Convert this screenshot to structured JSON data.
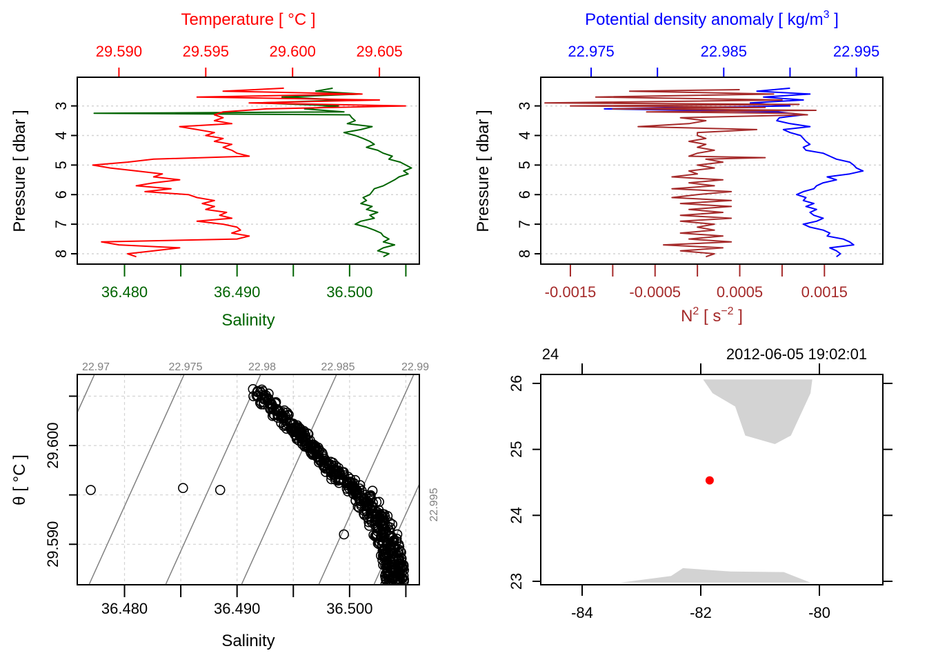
{
  "colors": {
    "temperature": "#ff0000",
    "salinity": "#006400",
    "density": "#0000ff",
    "n2": "#a52a2a",
    "frame": "#000000",
    "grid": "#d3d3d3",
    "isopycnal": "#808080",
    "land": "#d3d3d3",
    "station": "#ff0000"
  },
  "chart_data": [
    {
      "id": "temperature-salinity-profile",
      "type": "line",
      "title_top": "Temperature [ °C ]",
      "xlabel_bottom": "Salinity",
      "ylabel": "Pressure [ dbar ]",
      "top_axis": {
        "label": "Temperature [ °C ]",
        "ticks": [
          "29.590",
          "29.595",
          "29.600",
          "29.605"
        ],
        "tick_values": [
          29.59,
          29.595,
          29.6,
          29.605
        ],
        "range": [
          29.5876,
          29.6073
        ]
      },
      "bottom_axis": {
        "label": "Salinity",
        "ticks": [
          "36.480",
          "36.490",
          "36.500"
        ],
        "tick_values": [
          36.48,
          36.485,
          36.49,
          36.495,
          36.5,
          36.505
        ],
        "range": [
          36.4758,
          36.5062
        ]
      },
      "y_axis": {
        "ticks": [
          "3",
          "4",
          "5",
          "6",
          "7",
          "8"
        ],
        "tick_values": [
          3,
          4,
          5,
          6,
          7,
          8
        ],
        "range": [
          8.35,
          2.03
        ],
        "reversed": true
      },
      "grid": "horizontal-dotted",
      "series": [
        {
          "name": "Temperature",
          "axis": "top",
          "pressure": [
            2.4,
            2.5,
            2.6,
            2.7,
            2.8,
            2.9,
            3.0,
            3.1,
            3.2,
            3.3,
            3.4,
            3.5,
            3.6,
            3.7,
            3.8,
            3.9,
            4.0,
            4.1,
            4.2,
            4.3,
            4.4,
            4.5,
            4.6,
            4.7,
            4.8,
            4.9,
            5.0,
            5.1,
            5.2,
            5.3,
            5.4,
            5.5,
            5.6,
            5.7,
            5.8,
            5.9,
            6.0,
            6.1,
            6.2,
            6.3,
            6.4,
            6.5,
            6.6,
            6.7,
            6.8,
            6.9,
            7.0,
            7.1,
            7.2,
            7.3,
            7.4,
            7.5,
            7.6,
            7.7,
            7.8,
            7.9,
            8.0,
            8.1
          ],
          "values": [
            29.5995,
            29.596,
            29.604,
            29.5945,
            29.605,
            29.5975,
            29.6065,
            29.5985,
            29.596,
            29.5955,
            29.596,
            29.5955,
            29.5965,
            29.5935,
            29.5945,
            29.5955,
            29.595,
            29.596,
            29.5955,
            29.5965,
            29.596,
            29.5965,
            29.5968,
            29.5975,
            29.592,
            29.5905,
            29.5885,
            29.5895,
            29.591,
            29.5925,
            29.592,
            29.5935,
            29.592,
            29.591,
            29.593,
            29.5915,
            29.594,
            29.5945,
            29.5955,
            29.5948,
            29.5955,
            29.595,
            29.5962,
            29.5958,
            29.5965,
            29.5945,
            29.596,
            29.5968,
            29.597,
            29.5965,
            29.5975,
            29.5968,
            29.589,
            29.59,
            29.5935,
            29.592,
            29.5905,
            29.591
          ]
        },
        {
          "name": "Salinity",
          "axis": "bottom",
          "pressure": [
            2.4,
            2.5,
            2.6,
            2.7,
            2.8,
            2.9,
            3.0,
            3.1,
            3.2,
            3.25,
            3.3,
            3.4,
            3.5,
            3.6,
            3.7,
            3.8,
            3.9,
            4.0,
            4.1,
            4.2,
            4.3,
            4.4,
            4.5,
            4.6,
            4.7,
            4.8,
            4.9,
            5.0,
            5.1,
            5.2,
            5.3,
            5.4,
            5.5,
            5.6,
            5.7,
            5.8,
            5.9,
            6.0,
            6.1,
            6.2,
            6.3,
            6.4,
            6.5,
            6.6,
            6.7,
            6.8,
            6.9,
            7.0,
            7.1,
            7.2,
            7.3,
            7.4,
            7.5,
            7.6,
            7.7,
            7.8,
            7.9,
            8.0,
            8.1
          ],
          "values": [
            36.4985,
            36.497,
            36.501,
            36.494,
            36.4995,
            36.492,
            36.499,
            36.496,
            36.4995,
            36.4773,
            36.5,
            36.5002,
            36.5005,
            36.4998,
            36.502,
            36.501,
            36.4995,
            36.5005,
            36.5012,
            36.5018,
            36.5022,
            36.5015,
            36.5025,
            36.503,
            36.5038,
            36.5035,
            36.5045,
            36.505,
            36.5055,
            36.5048,
            36.5052,
            36.5044,
            36.504,
            36.5035,
            36.503,
            36.5022,
            36.502,
            36.5018,
            36.5012,
            36.5015,
            36.501,
            36.502,
            36.5015,
            36.5025,
            36.5018,
            36.5022,
            36.501,
            36.5005,
            36.5015,
            36.5022,
            36.5028,
            36.503,
            36.5035,
            36.503,
            36.504,
            36.503,
            36.5025,
            36.5035,
            36.503
          ]
        }
      ]
    },
    {
      "id": "density-n2-profile",
      "type": "line",
      "title_top": "Potential density anomaly [ kg/m³ ]",
      "xlabel_bottom": "N² [ s⁻² ]",
      "ylabel": "Pressure [ dbar ]",
      "top_axis": {
        "label": "Potential density anomaly [ kg/m^3 ]",
        "ticks": [
          "22.975",
          "22.985",
          "22.995"
        ],
        "tick_values": [
          22.975,
          22.98,
          22.985,
          22.99,
          22.995
        ],
        "range": [
          22.9712,
          22.997
        ]
      },
      "bottom_axis": {
        "label": "N^2 [ s^-2 ]",
        "ticks": [
          "-0.0015",
          "-0.0005",
          "0.0005",
          "0.0015"
        ],
        "tick_values": [
          -0.0015,
          -0.001,
          -0.0005,
          0,
          0.0005,
          0.001,
          0.0015
        ],
        "range": [
          -0.00185,
          0.00219
        ]
      },
      "y_axis": {
        "ticks": [
          "3",
          "4",
          "5",
          "6",
          "7",
          "8"
        ],
        "tick_values": [
          3,
          4,
          5,
          6,
          7,
          8
        ],
        "range": [
          8.35,
          2.03
        ],
        "reversed": true
      },
      "grid": "horizontal-dotted",
      "series": [
        {
          "name": "Potential density anomaly",
          "axis": "top",
          "pressure": [
            2.4,
            2.5,
            2.6,
            2.7,
            2.8,
            2.9,
            3.0,
            3.1,
            3.2,
            3.3,
            3.4,
            3.5,
            3.6,
            3.7,
            3.8,
            3.9,
            4.0,
            4.1,
            4.2,
            4.3,
            4.4,
            4.5,
            4.6,
            4.7,
            4.8,
            4.9,
            5.0,
            5.1,
            5.2,
            5.3,
            5.4,
            5.5,
            5.6,
            5.7,
            5.8,
            5.9,
            6.0,
            6.1,
            6.2,
            6.3,
            6.4,
            6.5,
            6.6,
            6.7,
            6.8,
            6.9,
            7.0,
            7.1,
            7.2,
            7.3,
            7.4,
            7.5,
            7.6,
            7.7,
            7.8,
            7.9,
            8.0,
            8.1
          ],
          "values": [
            22.99,
            22.9875,
            22.9915,
            22.988,
            22.991,
            22.987,
            22.99,
            22.976,
            22.989,
            22.991,
            22.9892,
            22.989,
            22.99,
            22.9915,
            22.9895,
            22.99,
            22.9908,
            22.991,
            22.9912,
            22.9915,
            22.991,
            22.9912,
            22.9925,
            22.993,
            22.9935,
            22.9945,
            22.9948,
            22.995,
            22.9955,
            22.9945,
            22.9928,
            22.9935,
            22.9925,
            22.992,
            22.9918,
            22.991,
            22.9905,
            22.9912,
            22.991,
            22.9918,
            22.9912,
            22.992,
            22.9915,
            22.9918,
            22.9925,
            22.992,
            22.991,
            22.9915,
            22.9925,
            22.993,
            22.9928,
            22.994,
            22.9945,
            22.9948,
            22.993,
            22.9935,
            22.9938,
            22.9935
          ]
        },
        {
          "name": "N2",
          "axis": "bottom",
          "pressure": [
            2.45,
            2.5,
            2.6,
            2.7,
            2.8,
            2.9,
            2.95,
            3.0,
            3.05,
            3.1,
            3.15,
            3.2,
            3.25,
            3.3,
            3.4,
            3.5,
            3.6,
            3.7,
            3.8,
            3.9,
            4.0,
            4.1,
            4.2,
            4.3,
            4.4,
            4.5,
            4.6,
            4.7,
            4.75,
            4.8,
            4.9,
            5.0,
            5.1,
            5.2,
            5.3,
            5.4,
            5.5,
            5.6,
            5.7,
            5.8,
            5.9,
            6.0,
            6.1,
            6.2,
            6.3,
            6.4,
            6.5,
            6.6,
            6.7,
            6.8,
            6.9,
            7.0,
            7.1,
            7.2,
            7.3,
            7.4,
            7.5,
            7.6,
            7.7,
            7.8,
            7.9,
            8.0,
            8.1
          ],
          "values": [
            0.0005,
            -0.0008,
            0.0009,
            -0.0012,
            0.001,
            -0.0018,
            0.0012,
            -0.0015,
            0.0008,
            -0.001,
            0.0014,
            -0.0006,
            0.0011,
            0.0013,
            -0.0002,
            0.0001,
            -0.0001,
            -0.0007,
            0.0007,
            0.0,
            0.0,
            0.0001,
            -0.0001,
            0.0001,
            0.0,
            0.0002,
            0.0,
            -0.0001,
            0.0008,
            0.0001,
            0.0003,
            0.0,
            0.0002,
            -0.0001,
            0.0,
            -0.0003,
            0.0003,
            -0.0001,
            0.0002,
            -0.0003,
            0.0004,
            0.0,
            -0.0003,
            0.0004,
            -0.0002,
            0.0004,
            -0.0001,
            0.0003,
            -0.0002,
            0.0004,
            -0.0002,
            0.0002,
            0.0,
            0.0002,
            -0.0002,
            0.0003,
            -0.0001,
            0.0004,
            -0.0004,
            0.0003,
            -0.0002,
            0.0002,
            0.0001
          ]
        }
      ]
    },
    {
      "id": "ts-diagram",
      "type": "scatter",
      "xlabel": "Salinity",
      "ylabel": "θ [ °C ]",
      "x_axis": {
        "ticks": [
          "36.480",
          "36.490",
          "36.500"
        ],
        "tick_values": [
          36.48,
          36.485,
          36.49,
          36.495,
          36.5,
          36.505
        ],
        "range": [
          36.4758,
          36.5062
        ]
      },
      "y_axis": {
        "ticks": [
          "29.590",
          "29.600"
        ],
        "tick_values": [
          29.585,
          29.59,
          29.595,
          29.6,
          29.605
        ],
        "range": [
          29.5859,
          29.6072
        ]
      },
      "grid": "dotted",
      "isopycnals": {
        "labels": [
          "22.97",
          "22.975",
          "22.98",
          "22.985",
          "22.99",
          "22.995"
        ],
        "values": [
          22.97,
          22.975,
          22.98,
          22.985,
          22.99,
          22.995
        ]
      },
      "outliers": [
        {
          "S": 36.477,
          "T": 29.5955
        },
        {
          "S": 36.4852,
          "T": 29.5957
        },
        {
          "S": 36.4885,
          "T": 29.5955
        },
        {
          "S": 36.4995,
          "T": 29.591
        }
      ],
      "cluster_path": [
        {
          "S": 36.4918,
          "T": 29.6055
        },
        {
          "S": 36.4945,
          "T": 29.6025
        },
        {
          "S": 36.4965,
          "T": 29.6
        },
        {
          "S": 36.4985,
          "T": 29.5975
        },
        {
          "S": 36.501,
          "T": 29.595
        },
        {
          "S": 36.5025,
          "T": 29.5925
        },
        {
          "S": 36.5035,
          "T": 29.59
        },
        {
          "S": 36.504,
          "T": 29.5875
        },
        {
          "S": 36.504,
          "T": 29.5862
        }
      ]
    },
    {
      "id": "station-map",
      "type": "scatter",
      "x_axis": {
        "ticks": [
          "-84",
          "-82",
          "-80"
        ],
        "tick_values": [
          -84,
          -82,
          -80
        ],
        "range": [
          -84.7,
          -79.0
        ]
      },
      "y_axis": {
        "ticks": [
          "23",
          "24",
          "25",
          "26"
        ],
        "tick_values": [
          23,
          24,
          25,
          26
        ],
        "range": [
          22.98,
          26.06
        ]
      },
      "top_axis": {
        "labels": [
          "24",
          "2012-06-05 19:02:01"
        ]
      },
      "station": {
        "lon": -81.85,
        "lat": 24.53
      },
      "land": [
        {
          "name": "florida",
          "points": [
            [
              -81.96,
              26.06
            ],
            [
              -81.8,
              25.85
            ],
            [
              -81.42,
              25.65
            ],
            [
              -81.25,
              25.21
            ],
            [
              -80.75,
              25.08
            ],
            [
              -80.48,
              25.21
            ],
            [
              -80.15,
              25.85
            ],
            [
              -80.12,
              26.06
            ]
          ]
        },
        {
          "name": "cuba",
          "points": [
            [
              -83.35,
              22.98
            ],
            [
              -82.5,
              23.08
            ],
            [
              -82.3,
              23.2
            ],
            [
              -81.5,
              23.15
            ],
            [
              -80.6,
              23.14
            ],
            [
              -80.15,
              22.98
            ]
          ]
        }
      ]
    }
  ]
}
